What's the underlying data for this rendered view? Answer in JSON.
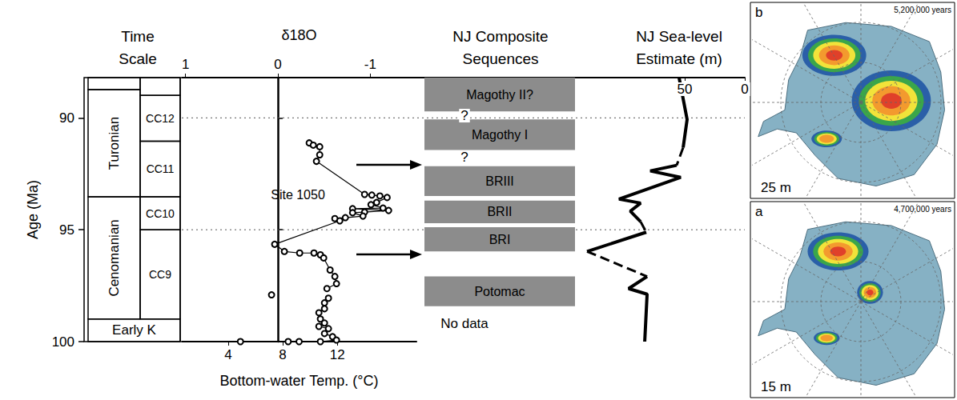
{
  "chart_data": {
    "type": "composite",
    "ylabel": "Age (Ma)",
    "ylim": [
      100,
      88.2
    ],
    "yticks": [
      90,
      95,
      100
    ],
    "grid": true,
    "panels": [
      {
        "type": "timescale",
        "title": "Time Scale",
        "stages": [
          {
            "from": 88.2,
            "to": 88.74
          },
          {
            "label": "Turonian",
            "from": 88.74,
            "to": 93.53
          },
          {
            "label": "Cenomanian",
            "from": 93.53,
            "to": 98.99
          },
          {
            "label": "Early K",
            "from": 98.99,
            "to": 100
          }
        ],
        "zones": [
          {
            "from": 88.2,
            "to": 89.0
          },
          {
            "label": "CC12",
            "from": 89.0,
            "to": 91.04
          },
          {
            "label": "CC11",
            "from": 91.04,
            "to": 93.53
          },
          {
            "label": "CC10",
            "from": 93.53,
            "to": 95.0
          },
          {
            "label": "CC9",
            "from": 95.0,
            "to": 98.99
          }
        ]
      },
      {
        "type": "line",
        "xlabel": "Bottom-water Temp. (°C)",
        "xlim": [
          0.6,
          17.8
        ],
        "xticks": [
          4,
          8,
          12
        ],
        "x2label": "δ18O",
        "x2lim": [
          1.04,
          -1.5
        ],
        "x2ticks": [
          1,
          0,
          -1
        ],
        "tick_labels": "x",
        "color": "#000000",
        "marker": "open_circle",
        "line_style": "solid",
        "annotations": [
          {
            "text": "Site 1050"
          }
        ],
        "values": [
          [
            9.94,
            91.12
          ],
          [
            10.24,
            91.22
          ],
          [
            10.71,
            91.29
          ],
          [
            10.71,
            91.65
          ],
          [
            10.47,
            91.94
          ],
          [
            14.0,
            93.42
          ],
          [
            14.53,
            93.45
          ],
          [
            15.12,
            93.49
          ],
          [
            15.65,
            93.56
          ],
          [
            14.88,
            93.78
          ],
          [
            14.47,
            93.88
          ],
          [
            15.35,
            94.03
          ],
          [
            13.12,
            94.06
          ],
          [
            15.76,
            94.14
          ],
          [
            14.0,
            94.21
          ],
          [
            13.12,
            94.24
          ],
          [
            13.88,
            94.39
          ],
          [
            12.59,
            94.46
          ],
          [
            11.82,
            94.5
          ],
          [
            12.18,
            94.6
          ],
          [
            7.41,
            95.65
          ],
          [
            8.12,
            95.97
          ],
          [
            9.24,
            96.04
          ],
          [
            10.29,
            96.04
          ],
          [
            10.76,
            96.12
          ],
          [
            11.0,
            96.26
          ],
          [
            11.47,
            96.8
          ],
          [
            11.82,
            97.09
          ],
          [
            11.94,
            97.41
          ],
          [
            11.24,
            97.63
          ],
          null,
          [
            7.18,
            97.91
          ],
          null,
          [
            11.35,
            98.06
          ],
          [
            11.06,
            98.27
          ],
          [
            11.06,
            98.53
          ],
          [
            10.65,
            98.71
          ],
          [
            10.76,
            98.99
          ],
          [
            11.06,
            99.17
          ],
          [
            10.65,
            99.32
          ],
          [
            11.35,
            99.42
          ],
          [
            11.06,
            99.64
          ],
          [
            11.65,
            99.78
          ],
          [
            11.94,
            99.93
          ],
          [
            10.76,
            100
          ],
          [
            9.2,
            100
          ],
          [
            8.4,
            100
          ],
          [
            4.9,
            100
          ]
        ]
      },
      {
        "type": "sequences",
        "title": "NJ Composite Sequences",
        "color": "#8c8c8c",
        "sequences": [
          {
            "label": "Magothy II?",
            "from": 88.2,
            "to": 89.71
          },
          {
            "label": "Magothy I",
            "from": 90.07,
            "to": 91.44
          },
          {
            "label": "BRIII",
            "from": 92.16,
            "to": 93.49
          },
          {
            "label": "BRII",
            "from": 93.7,
            "to": 94.71
          },
          {
            "label": "BRI",
            "from": 94.89,
            "to": 95.97
          },
          {
            "label": "Potomac",
            "from": 97.09,
            "to": 98.42
          }
        ],
        "annotations": [
          {
            "text": "?",
            "y": 89.9
          },
          {
            "text": "?",
            "y": 91.76
          },
          {
            "text": "No data",
            "y": 99.2
          }
        ],
        "arrows": [
          92.1,
          96.1
        ]
      },
      {
        "type": "line",
        "title": "NJ Sea-level Estimate (m)",
        "xlim": [
          140,
          0
        ],
        "xticks": [
          50,
          0
        ],
        "tick_labels": "x",
        "color": "#000000",
        "series": [
          {
            "line_style": "solid",
            "values": [
              [
                54.7,
                88.2
              ],
              [
                48,
                90.07
              ],
              [
                51.3,
                91.33
              ],
              null,
              [
                56.7,
                92.12
              ],
              [
                78.7,
                92.37
              ],
              [
                53.3,
                92.66
              ],
              [
                104.7,
                93.63
              ],
              [
                86.7,
                93.81
              ],
              [
                95.3,
                94.17
              ],
              [
                86.7,
                94.64
              ],
              null,
              [
                82,
                95.11
              ],
              [
                131.3,
                95.97
              ],
              null,
              [
                81.3,
                97.09
              ],
              [
                96.7,
                97.63
              ],
              [
                81.3,
                97.88
              ],
              [
                83.3,
                100
              ]
            ]
          },
          {
            "line_style": "dashed",
            "values": [
              [
                51.3,
                91.33
              ],
              [
                56.7,
                92.12
              ],
              null,
              [
                86.7,
                94.64
              ],
              [
                82,
                95.11
              ],
              null,
              [
                131.3,
                95.97
              ],
              [
                81.3,
                97.09
              ]
            ]
          }
        ]
      },
      {
        "type": "map",
        "maps": [
          {
            "label": "b",
            "time": "5,200,000 years",
            "text": "25 m"
          },
          {
            "label": "a",
            "time": "4,700,000 years",
            "text": "15 m"
          }
        ]
      }
    ]
  }
}
